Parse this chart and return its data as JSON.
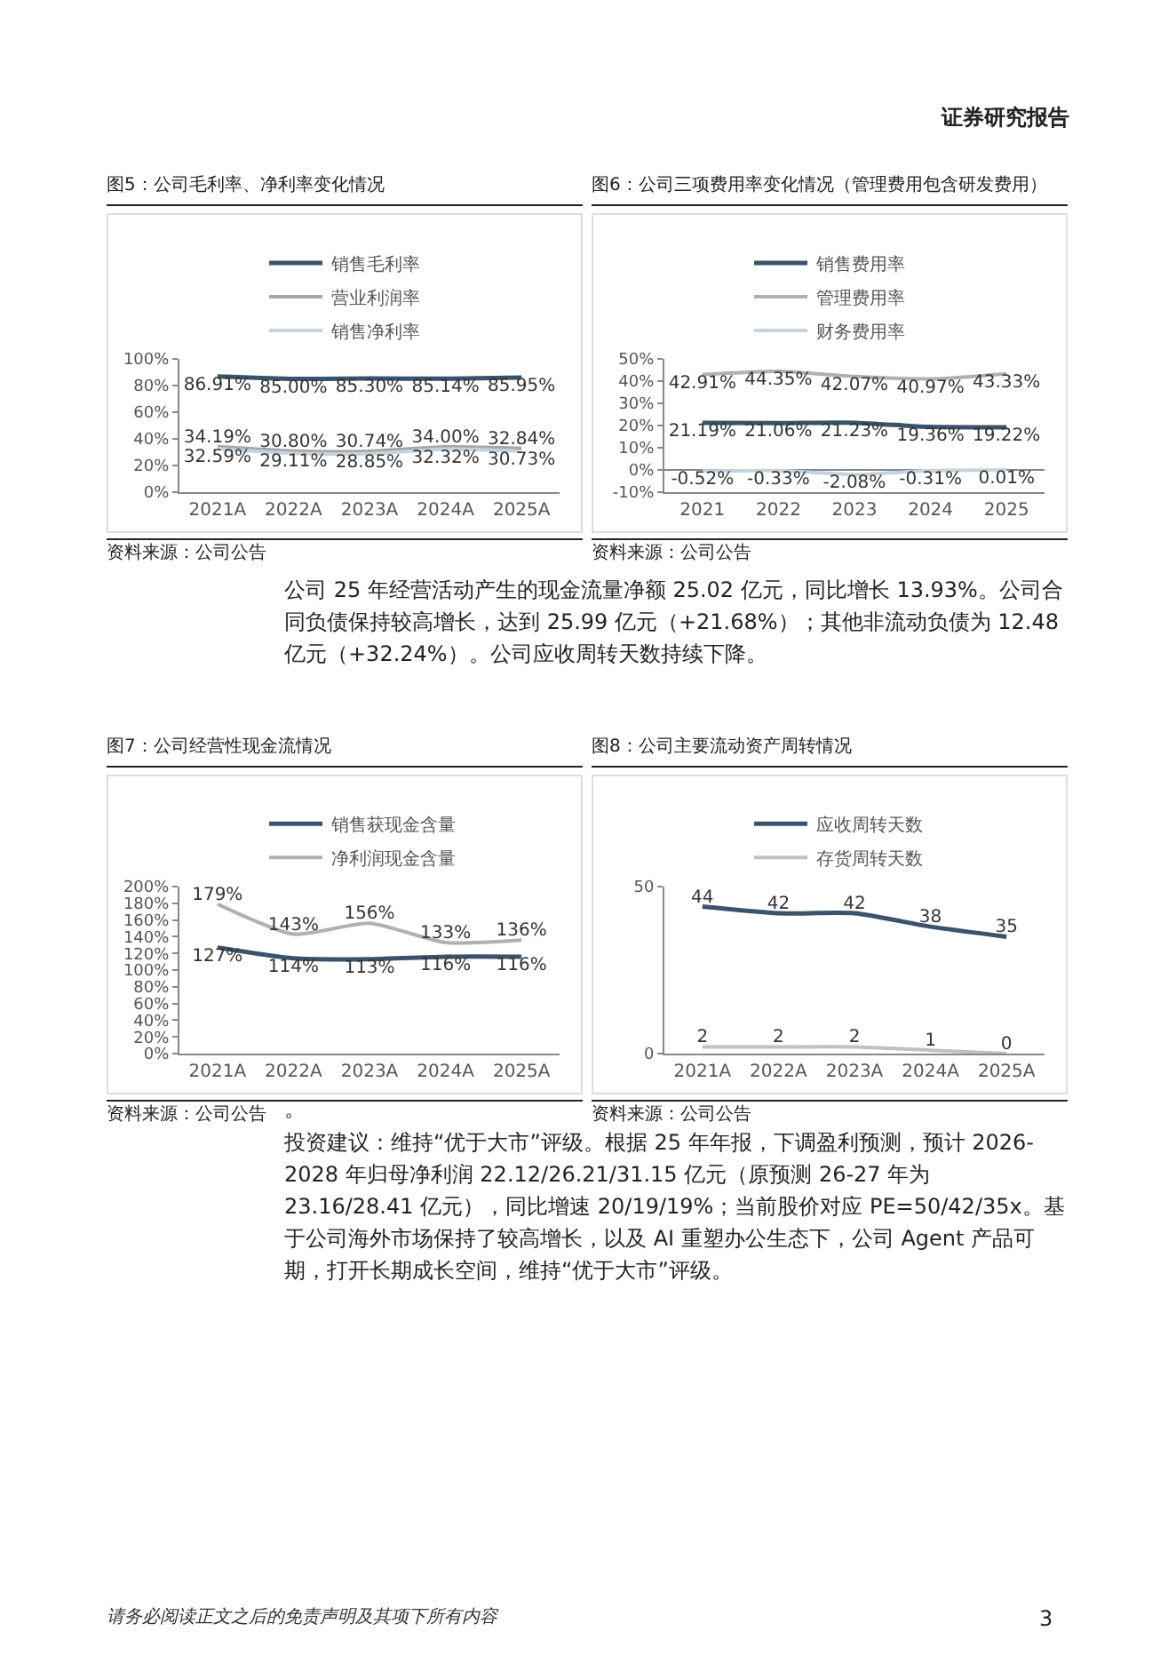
{
  "chart_data": [
    {
      "type": "line",
      "title": "图5：公司毛利率、净利率变化情况",
      "categories": [
        "2021A",
        "2022A",
        "2023A",
        "2024A",
        "2025A"
      ],
      "ylim": [
        0,
        100
      ],
      "yticks": [
        {
          "value": 0,
          "label": "0%"
        },
        {
          "value": 20,
          "label": "20%"
        },
        {
          "value": 40,
          "label": "40%"
        },
        {
          "value": 60,
          "label": "60%"
        },
        {
          "value": 80,
          "label": "80%"
        },
        {
          "value": 100,
          "label": "100%"
        }
      ],
      "legend": "top",
      "marker": "none",
      "line_style": "solid",
      "series": [
        {
          "name": "销售毛利率",
          "color": "#3a536b",
          "values": [
            86.91,
            85.0,
            85.3,
            85.14,
            85.95
          ],
          "value_labels": [
            "86.91%",
            "85.00%",
            "85.30%",
            "85.14%",
            "85.95%"
          ]
        },
        {
          "name": "营业利润率",
          "color": "#a6a6a6",
          "values": [
            34.19,
            30.8,
            30.74,
            34.0,
            32.84
          ],
          "value_labels": [
            "34.19%",
            "30.80%",
            "30.74%",
            "34.00%",
            "32.84%"
          ]
        },
        {
          "name": "销售净利率",
          "color": "#c5d3de",
          "values": [
            32.59,
            29.11,
            28.85,
            32.32,
            30.73
          ],
          "value_labels": [
            "32.59%",
            "29.11%",
            "28.85%",
            "32.32%",
            "30.73%"
          ]
        }
      ],
      "annotations": [
        "证券研究报告",
        "资料来源：公司公告"
      ]
    },
    {
      "type": "line",
      "title": "图6：公司三项费用率变化情况（管理费用包含研发费用）",
      "categories": [
        "2021",
        "2022",
        "2023",
        "2024",
        "2025"
      ],
      "ylim": [
        -10,
        50
      ],
      "yticks": [
        {
          "value": -10,
          "label": "-10%"
        },
        {
          "value": 0,
          "label": "0%"
        },
        {
          "value": 10,
          "label": "10%"
        },
        {
          "value": 20,
          "label": "20%"
        },
        {
          "value": 30,
          "label": "30%"
        },
        {
          "value": 40,
          "label": "40%"
        },
        {
          "value": 50,
          "label": "50%"
        }
      ],
      "legend": "top",
      "marker": "none",
      "line_style": "solid",
      "series": [
        {
          "name": "销售费用率",
          "color": "#3a536b",
          "values": [
            21.19,
            21.06,
            21.23,
            19.36,
            19.22
          ],
          "value_labels": [
            "21.19%",
            "21.06%",
            "21.23%",
            "19.36%",
            "19.22%"
          ]
        },
        {
          "name": "管理费用率",
          "color": "#b0b0b0",
          "values": [
            42.91,
            44.35,
            42.07,
            40.97,
            43.33
          ],
          "value_labels": [
            "42.91%",
            "44.35%",
            "42.07%",
            "40.97%",
            "43.33%"
          ]
        },
        {
          "name": "财务费用率",
          "color": "#c5d3de",
          "values": [
            -0.52,
            -0.33,
            -2.08,
            -0.31,
            0.01
          ],
          "value_labels": [
            "-0.52%",
            "-0.33%",
            "-2.08%",
            "-0.31%",
            "0.01%"
          ]
        }
      ],
      "annotations": [
        "资料来源：公司公告",
        "公司 25 年经营活动产生的现金流量净额 25.02 亿元，同比增长 13.93%。公司合同负债保持较高增长，达到 25.99 亿元（+21.68%）；其他非流动负债为 12.48 亿元（+32.24%）。公司应收周转天数持续下降。"
      ]
    },
    {
      "type": "line",
      "title": "图7：公司经营性现金流情况",
      "categories": [
        "2021A",
        "2022A",
        "2023A",
        "2024A",
        "2025A"
      ],
      "ylim": [
        0,
        200
      ],
      "yticks": [
        {
          "value": 0,
          "label": "0%"
        },
        {
          "value": 20,
          "label": "20%"
        },
        {
          "value": 40,
          "label": "40%"
        },
        {
          "value": 60,
          "label": "60%"
        },
        {
          "value": 80,
          "label": "80%"
        },
        {
          "value": 100,
          "label": "100%"
        },
        {
          "value": 120,
          "label": "120%"
        },
        {
          "value": 140,
          "label": "140%"
        },
        {
          "value": 160,
          "label": "160%"
        },
        {
          "value": 180,
          "label": "180%"
        },
        {
          "value": 200,
          "label": "200%"
        }
      ],
      "legend": "top",
      "marker": "none",
      "line_style": "solid",
      "series": [
        {
          "name": "销售获现金含量",
          "color": "#3a536b",
          "values": [
            127,
            114,
            113,
            116,
            116
          ],
          "value_labels": [
            "127%",
            "114%",
            "113%",
            "116%",
            "116%"
          ]
        },
        {
          "name": "净利润现金含量",
          "color": "#b0b0b0",
          "values": [
            179,
            143,
            156,
            133,
            136
          ],
          "value_labels": [
            "179%",
            "143%",
            "156%",
            "133%",
            "136%"
          ]
        }
      ],
      "annotations": [
        "资料来源：公司公告"
      ]
    },
    {
      "type": "line",
      "title": "图8：公司主要流动资产周转情况",
      "categories": [
        "2021A",
        "2022A",
        "2023A",
        "2024A",
        "2025A"
      ],
      "ylim": [
        0,
        50
      ],
      "yticks": [
        0,
        50
      ],
      "legend": "top",
      "marker": "none",
      "line_style": "solid",
      "data_labels": true,
      "series": [
        {
          "name": "应收周转天数",
          "color": "#3a536b",
          "values": [
            44,
            42,
            42,
            38,
            35
          ]
        },
        {
          "name": "存货周转天数",
          "color": "#c0c0c0",
          "values": [
            2,
            2,
            2,
            1,
            0
          ]
        }
      ],
      "annotations": [
        "资料来源：公司公告",
        "。",
        "投资建议：维持“优于大市”评级。根据 25 年年报，下调盈利预测，预计 2026-2028 年归母净利润 22.12/26.21/31.15 亿元（原预测 26-27 年为 23.16/28.41 亿元），同比增速 20/19/19%；当前股价对应 PE=50/42/35x。基于公司海外市场保持了较高增长，以及 AI 重塑办公生态下，公司 Agent 产品可期，打开长期成长空间，维持“优于大市”评级。",
        "请务必阅读正文之后的免责声明及其项下所有内容",
        "3"
      ]
    }
  ]
}
